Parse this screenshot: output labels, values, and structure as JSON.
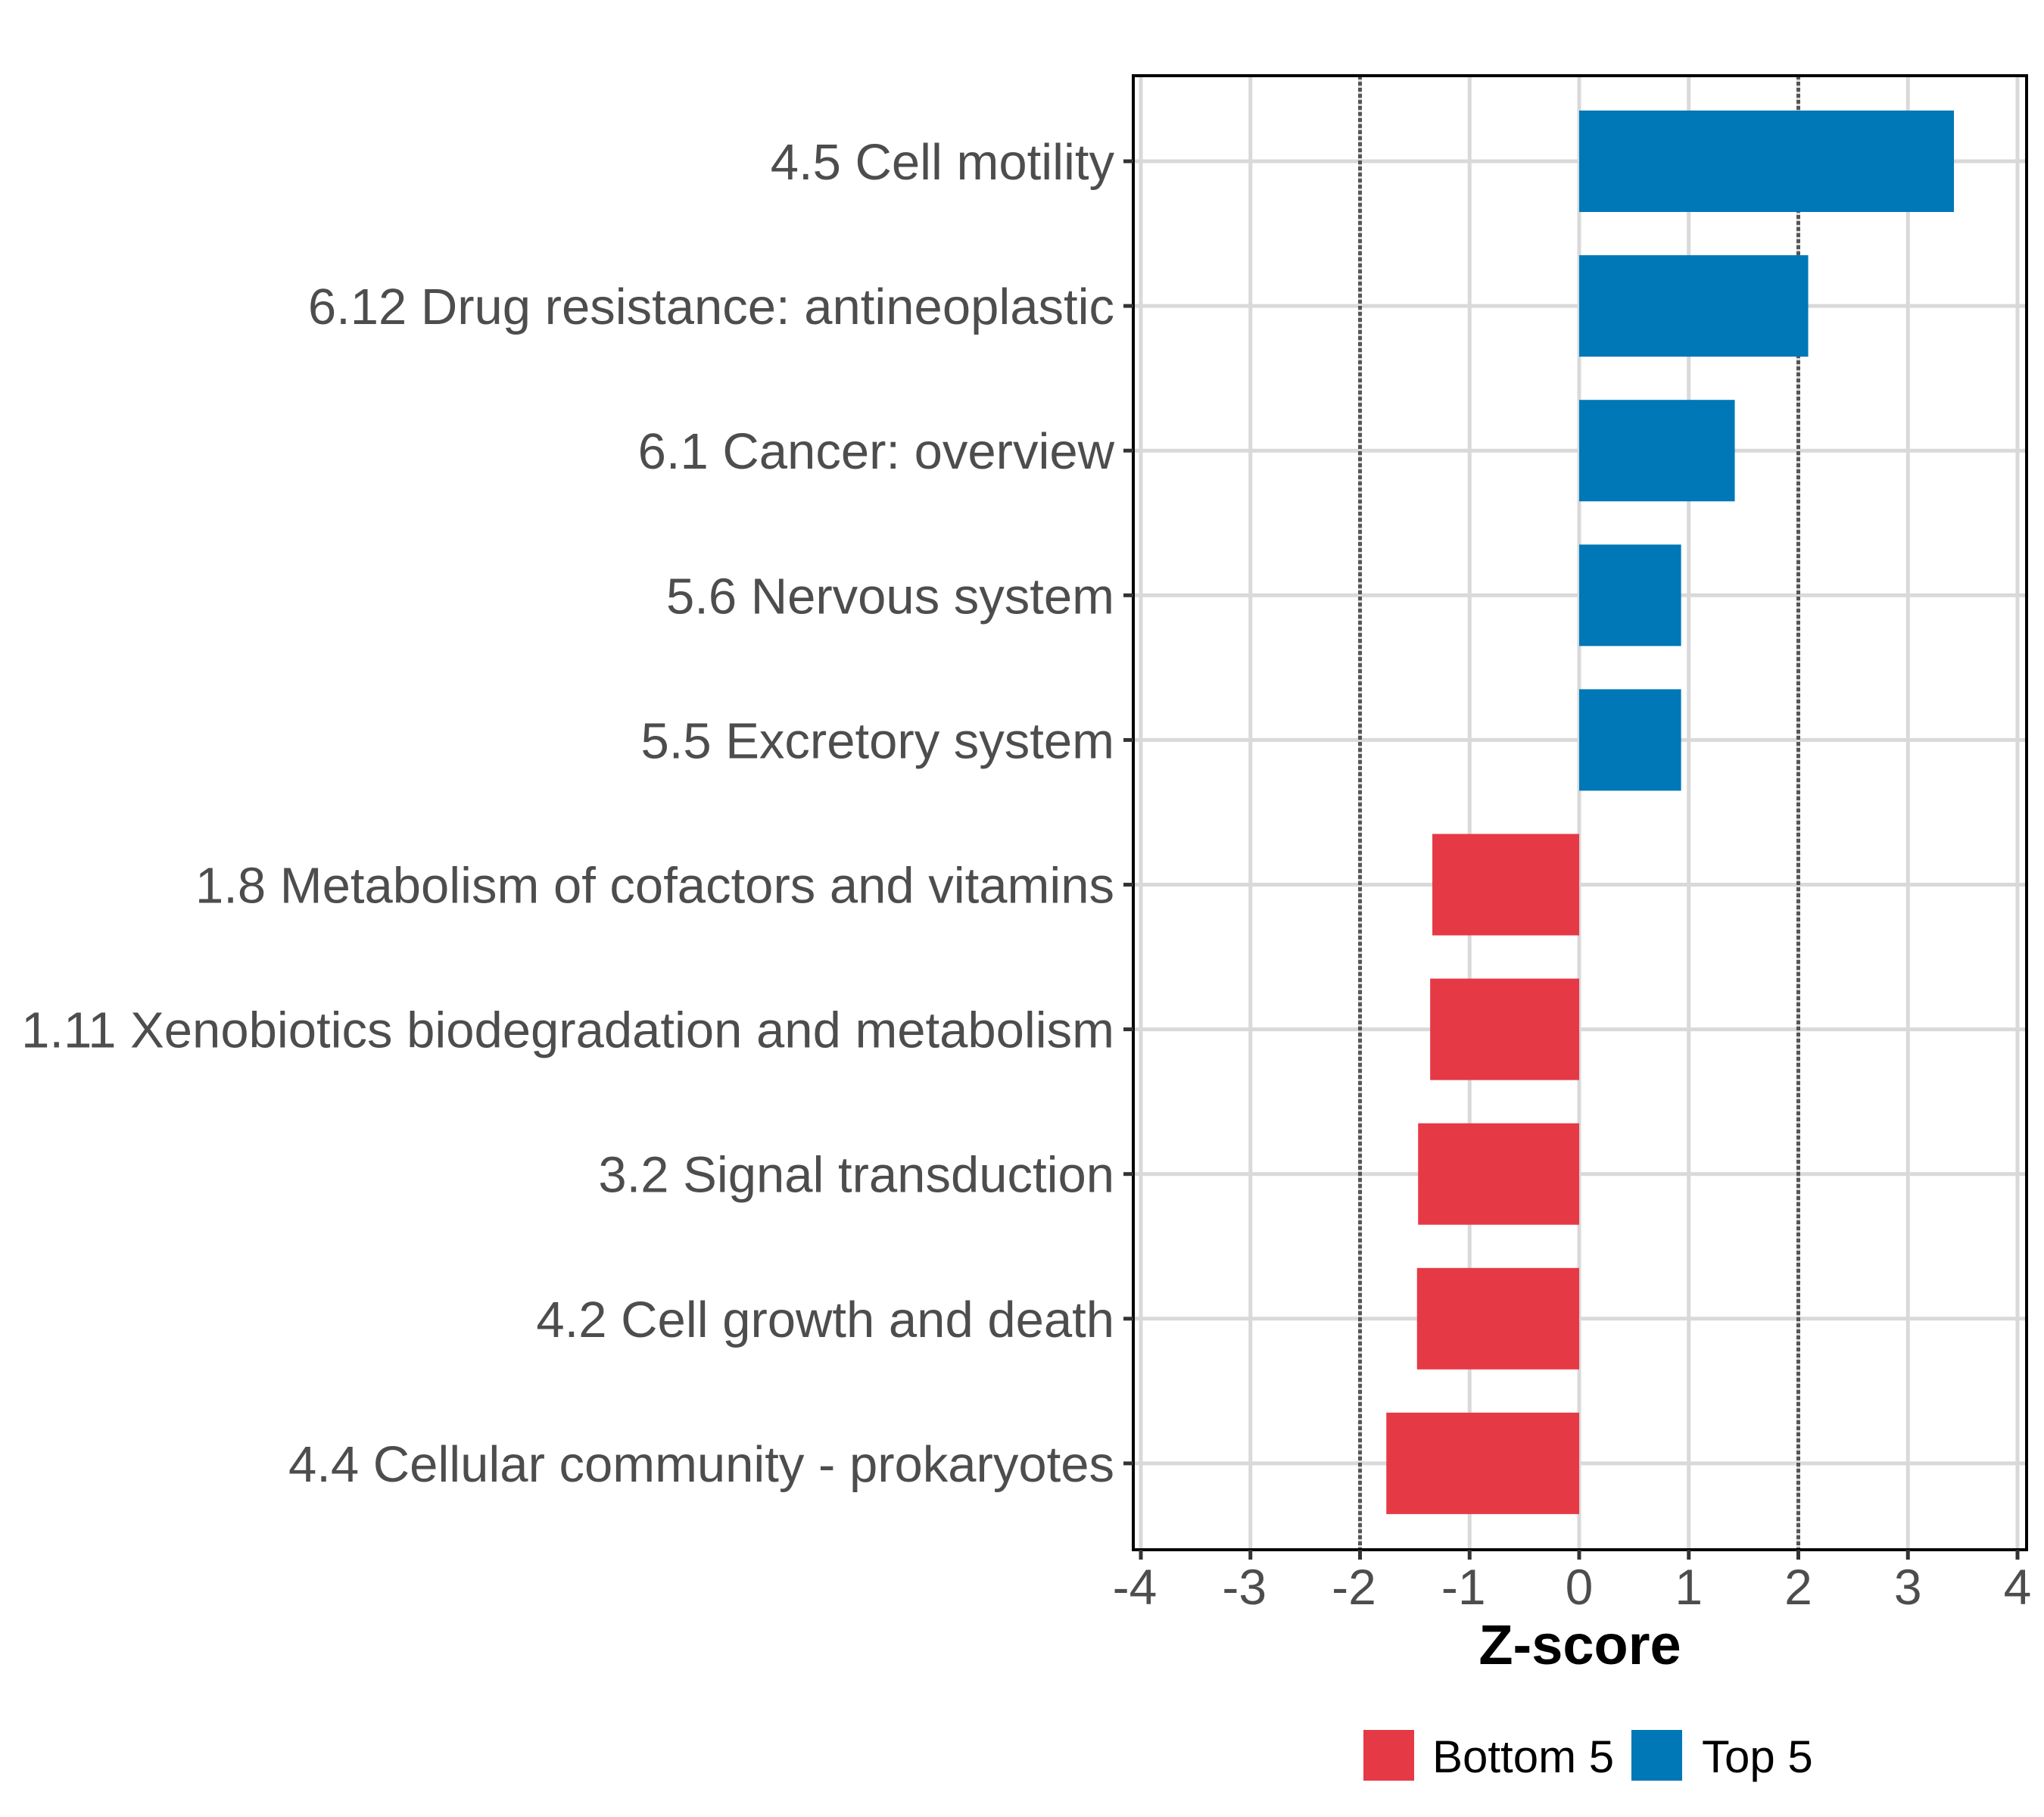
{
  "chart_data": {
    "type": "bar",
    "orientation": "horizontal",
    "title": "",
    "xlabel": "Z-score",
    "ylabel": "",
    "xlim": [
      -4,
      4
    ],
    "x_ticks": [
      -4,
      -3,
      -2,
      -1,
      0,
      1,
      2,
      3,
      4
    ],
    "x_tick_labels": [
      "-4",
      "-3",
      "-2",
      "-1",
      "0",
      "1",
      "2",
      "3",
      "4"
    ],
    "grid": true,
    "reference_lines": [
      -2,
      2
    ],
    "categories": [
      "4.5 Cell motility",
      "6.12 Drug resistance: antineoplastic",
      "6.1 Cancer: overview",
      "5.6 Nervous system",
      "5.5 Excretory system",
      "1.8 Metabolism of cofactors and vitamins",
      "1.11 Xenobiotics biodegradation and metabolism",
      "3.2 Signal transduction",
      "4.2 Cell growth and death",
      "4.4 Cellular community - prokaryotes"
    ],
    "values": [
      3.42,
      2.09,
      1.42,
      0.93,
      0.93,
      -1.34,
      -1.36,
      -1.47,
      -1.48,
      -1.76
    ],
    "groups": [
      "Top 5",
      "Top 5",
      "Top 5",
      "Top 5",
      "Top 5",
      "Bottom 5",
      "Bottom 5",
      "Bottom 5",
      "Bottom 5",
      "Bottom 5"
    ],
    "series": [
      {
        "name": "Bottom 5",
        "color": "#e63946"
      },
      {
        "name": "Top 5",
        "color": "#0077b6"
      }
    ],
    "legend": {
      "placement": "bottom",
      "entries": [
        {
          "label": "Bottom 5",
          "color": "#e63946"
        },
        {
          "label": "Top 5",
          "color": "#0077b6"
        }
      ]
    }
  }
}
